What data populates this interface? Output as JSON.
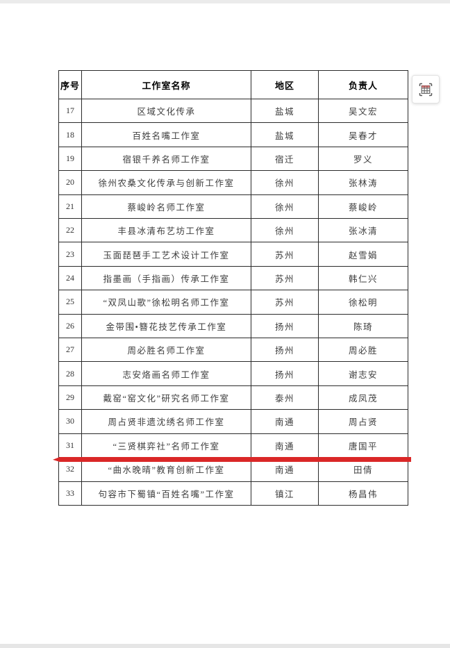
{
  "page": {
    "background": "#ffffff",
    "frame_color": "#ebebeb"
  },
  "table": {
    "columns": [
      "序号",
      "工作室名称",
      "地区",
      "负责人"
    ],
    "border_color": "#2a2a2a",
    "rows": [
      {
        "no": "17",
        "name": "区域文化传承",
        "region": "盐城",
        "leader": "吴文宏"
      },
      {
        "no": "18",
        "name": "百姓名嘴工作室",
        "region": "盐城",
        "leader": "吴春才"
      },
      {
        "no": "19",
        "name": "宿银千养名师工作室",
        "region": "宿迁",
        "leader": "罗义"
      },
      {
        "no": "20",
        "name": "徐州农桑文化传承与创新工作室",
        "region": "徐州",
        "leader": "张林涛"
      },
      {
        "no": "21",
        "name": "蔡峻岭名师工作室",
        "region": "徐州",
        "leader": "蔡峻岭"
      },
      {
        "no": "22",
        "name": "丰县冰清布艺坊工作室",
        "region": "徐州",
        "leader": "张冰清"
      },
      {
        "no": "23",
        "name": "玉面琵琶手工艺术设计工作室",
        "region": "苏州",
        "leader": "赵雪娟"
      },
      {
        "no": "24",
        "name": "指墨画（手指画）传承工作室",
        "region": "苏州",
        "leader": "韩仁兴"
      },
      {
        "no": "25",
        "name": "“双凤山歌”徐松明名师工作室",
        "region": "苏州",
        "leader": "徐松明"
      },
      {
        "no": "26",
        "name": "金带围•簪花技艺传承工作室",
        "region": "扬州",
        "leader": "陈琦"
      },
      {
        "no": "27",
        "name": "周必胜名师工作室",
        "region": "扬州",
        "leader": "周必胜"
      },
      {
        "no": "28",
        "name": "志安烙画名师工作室",
        "region": "扬州",
        "leader": "谢志安"
      },
      {
        "no": "29",
        "name": "戴窑“窑文化”研究名师工作室",
        "region": "泰州",
        "leader": "成凤茂"
      },
      {
        "no": "30",
        "name": "周占贤非遗沈绣名师工作室",
        "region": "南通",
        "leader": "周占贤"
      },
      {
        "no": "31",
        "name": "“三贤棋弈社”名师工作室",
        "region": "南通",
        "leader": "唐国平"
      },
      {
        "no": "32",
        "name": "“曲水晚晴”教育创新工作室",
        "region": "南通",
        "leader": "田倩"
      },
      {
        "no": "33",
        "name": "句容市下蜀镇“百姓名嘴”工作室",
        "region": "镇江",
        "leader": "杨昌伟"
      }
    ]
  },
  "annotation": {
    "type": "red-underline",
    "below_row_no": "31",
    "color": "#da2727"
  },
  "floating_button": {
    "icon": "table-select-icon",
    "header_accent": "#e89a9a",
    "bracket_color": "#5a5a5a"
  }
}
